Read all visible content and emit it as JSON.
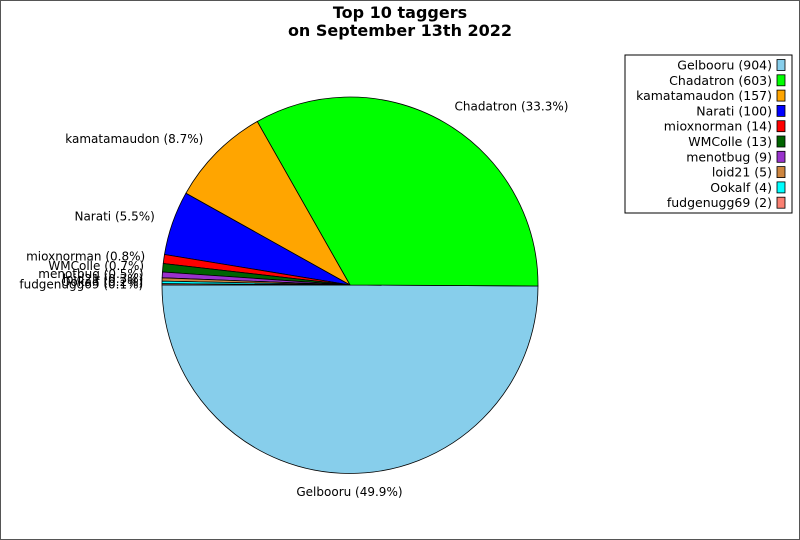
{
  "chart_data": {
    "type": "pie",
    "title_lines": [
      "Top 10 taggers",
      "on September 13th 2022"
    ],
    "slices": [
      {
        "name": "Gelbooru",
        "value": 904,
        "percent": "49.9%",
        "color": "#87ceeb"
      },
      {
        "name": "Chadatron",
        "value": 603,
        "percent": "33.3%",
        "color": "#00ff00"
      },
      {
        "name": "kamatamaudon",
        "value": 157,
        "percent": "8.7%",
        "color": "#ffa500"
      },
      {
        "name": "Narati",
        "value": 100,
        "percent": "5.5%",
        "color": "#0000ff"
      },
      {
        "name": "mioxnorman",
        "value": 14,
        "percent": "0.8%",
        "color": "#ff0000"
      },
      {
        "name": "WMColle",
        "value": 13,
        "percent": "0.7%",
        "color": "#006400"
      },
      {
        "name": "menotbug",
        "value": 9,
        "percent": "0.5%",
        "color": "#9932cc"
      },
      {
        "name": "loid21",
        "value": 5,
        "percent": "0.3%",
        "color": "#cd853f"
      },
      {
        "name": "Ookalf",
        "value": 4,
        "percent": "0.2%",
        "color": "#00ffff"
      },
      {
        "name": "fudgenugg69",
        "value": 2,
        "percent": "0.1%",
        "color": "#fa8072"
      }
    ],
    "legend": {
      "placement": "top-right",
      "entries": [
        "Gelbooru (904)",
        "Chadatron (603)",
        "kamatamaudon (157)",
        "Narati (100)",
        "mioxnorman (14)",
        "WMColle (13)",
        "menotbug (9)",
        "loid21 (5)",
        "Ookalf (4)",
        "fudgenugg69 (2)"
      ]
    }
  }
}
